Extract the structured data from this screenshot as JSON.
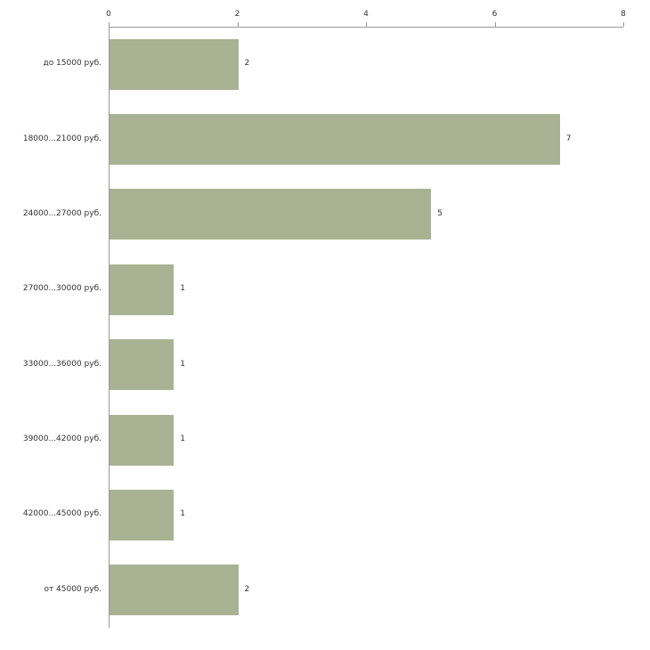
{
  "chart_data": {
    "type": "bar",
    "orientation": "horizontal",
    "title": "",
    "xlabel": "",
    "ylabel": "",
    "categories": [
      "до 15000 руб.",
      "18000...21000 руб.",
      "24000...27000 руб.",
      "27000...30000 руб.",
      "33000...36000 руб.",
      "39000...42000 руб.",
      "42000...45000 руб.",
      "от 45000 руб."
    ],
    "values": [
      2,
      7,
      5,
      1,
      1,
      1,
      1,
      2
    ],
    "value_labels": [
      "2",
      "7",
      "5",
      "1",
      "1",
      "1",
      "1",
      "2"
    ],
    "x_ticks": [
      0,
      2,
      4,
      6,
      8
    ],
    "x_tick_labels": [
      "0",
      "2",
      "4",
      "6",
      "8"
    ],
    "xlim": [
      0,
      8
    ],
    "grid": false,
    "legend_position": "none",
    "bar_color": "#a9b293",
    "axis_color": "#9a9a9a",
    "text_color": "#333333",
    "background_color": "#ffffff"
  }
}
